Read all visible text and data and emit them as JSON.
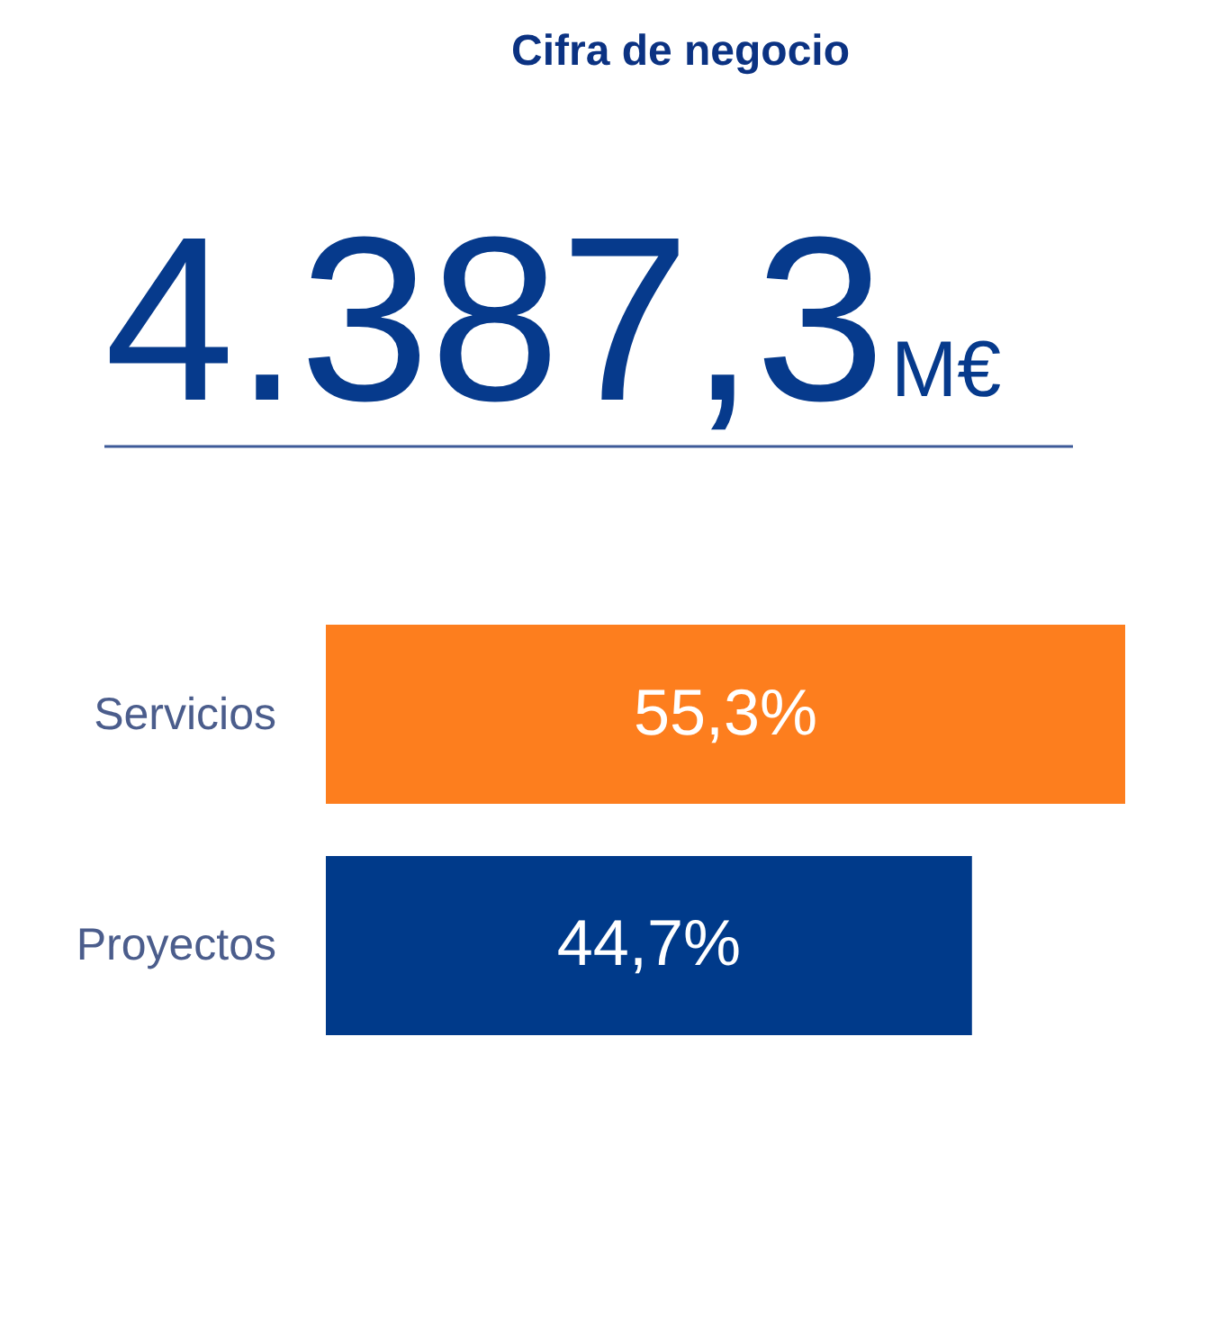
{
  "chart_data": {
    "type": "bar",
    "orientation": "horizontal",
    "title": "Cifra de negocio",
    "annotations": [
      "4.387,3",
      "M€"
    ],
    "categories": [
      "Servicios",
      "Proyectos"
    ],
    "values": [
      55.3,
      44.7
    ],
    "colors": [
      "#fd7e1e",
      "#003a8a"
    ],
    "value_labels": [
      "55,3%",
      "44,7%"
    ],
    "tick_labels": "y"
  }
}
